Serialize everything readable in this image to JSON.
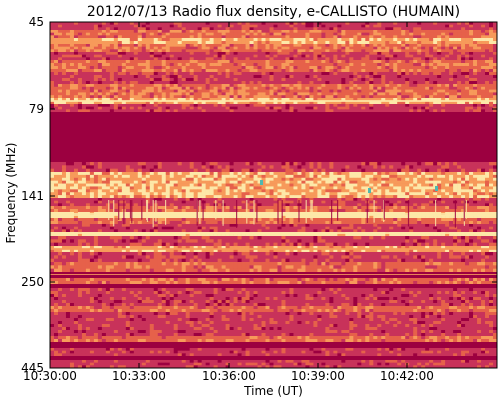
{
  "chart_data": {
    "type": "heatmap",
    "title": "2012/07/13  Radio flux density, e-CALLISTO (HUMAIN)",
    "xlabel": "Time (UT)",
    "ylabel": "Frequency (MHz)",
    "x_ticks": [
      "10:30:00",
      "10:33:00",
      "10:36:00",
      "10:39:00",
      "10:42:00"
    ],
    "y_ticks": [
      "45",
      "79",
      "141",
      "250",
      "445"
    ],
    "xlim": [
      "10:30:00",
      "10:45:00"
    ],
    "ylim": [
      45,
      445
    ],
    "colormap": [
      "#9c0040",
      "#c8325a",
      "#e6614a",
      "#f79a5a",
      "#fde8a8",
      "#4fb8b0"
    ]
  }
}
